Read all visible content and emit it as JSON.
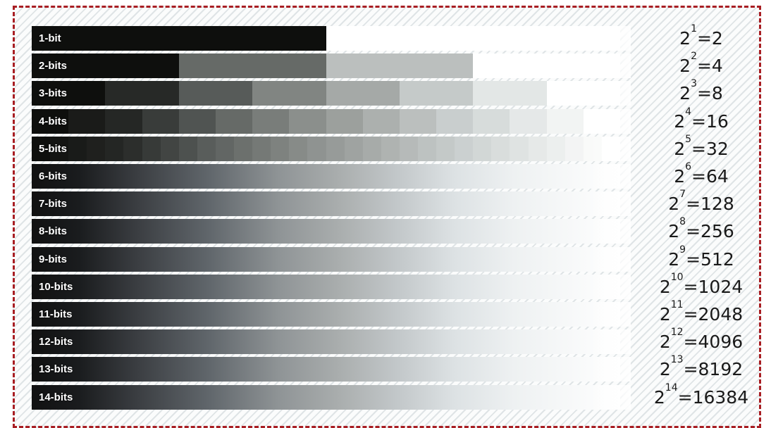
{
  "rows": [
    {
      "label": "1-bit",
      "base": "2",
      "exp": "1",
      "result": "=2",
      "levels": 2
    },
    {
      "label": "2-bits",
      "base": "2",
      "exp": "2",
      "result": "=4",
      "levels": 4
    },
    {
      "label": "3-bits",
      "base": "2",
      "exp": "3",
      "result": "=8",
      "levels": 8
    },
    {
      "label": "4-bits",
      "base": "2",
      "exp": "4",
      "result": "=16",
      "levels": 16
    },
    {
      "label": "5-bits",
      "base": "2",
      "exp": "5",
      "result": "=32",
      "levels": 32
    },
    {
      "label": "6-bits",
      "base": "2",
      "exp": "6",
      "result": "=64",
      "levels": 64
    },
    {
      "label": "7-bits",
      "base": "2",
      "exp": "7",
      "result": "=128",
      "levels": 128
    },
    {
      "label": "8-bits",
      "base": "2",
      "exp": "8",
      "result": "=256",
      "levels": 256
    },
    {
      "label": "9-bits",
      "base": "2",
      "exp": "9",
      "result": "=512",
      "levels": 512
    },
    {
      "label": "10-bits",
      "base": "2",
      "exp": "10",
      "result": "=1024",
      "levels": 1024
    },
    {
      "label": "11-bits",
      "base": "2",
      "exp": "11",
      "result": "=2048",
      "levels": 2048
    },
    {
      "label": "12-bits",
      "base": "2",
      "exp": "12",
      "result": "=4096",
      "levels": 4096
    },
    {
      "label": "13-bits",
      "base": "2",
      "exp": "13",
      "result": "=8192",
      "levels": 8192
    },
    {
      "label": "14-bits",
      "base": "2",
      "exp": "14",
      "result": "=16384",
      "levels": 16384
    }
  ],
  "colors": {
    "border": "#a81e23",
    "dark": "#0d0e0c",
    "light": "#ffffff"
  }
}
